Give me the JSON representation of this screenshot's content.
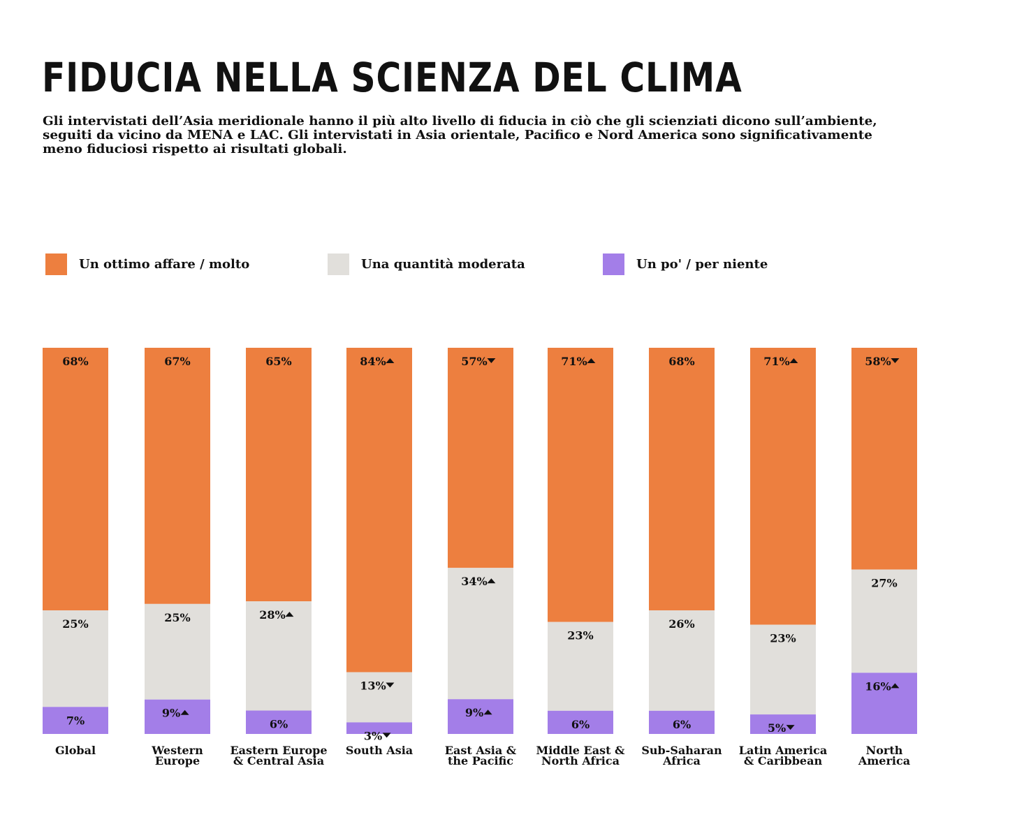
{
  "title": "FIDUCIA NELLA SCIENZA DEL CLIMA",
  "subtitle": "Gli intervistati dell’Asia meridionale hanno il più alto livello di fiducia in ciò che gli scienziati dicono sull’ambiente, seguiti da vicino da MENA e LAC. Gli intervistati in Asia orientale, Pacifico e Nord America sono significativamente meno fiduciosi rispetto ai risultati globali.",
  "colors": {
    "high": "#ED7F3F",
    "moderate": "#E1DFDB",
    "low": "#A37EE8",
    "text": "#111111"
  },
  "legend": [
    {
      "key": "high",
      "label": "Un ottimo affare / molto"
    },
    {
      "key": "moderate",
      "label": "Una quantità moderata"
    },
    {
      "key": "low",
      "label": "Un po' / per niente"
    }
  ],
  "chart_data": {
    "type": "bar",
    "stacked": true,
    "orientation": "vertical",
    "unit": "%",
    "title": "FIDUCIA NELLA SCIENZA DEL CLIMA",
    "categories": [
      [
        "Global"
      ],
      [
        "Western",
        "Europe"
      ],
      [
        "Eastern Europe",
        "& Central Asia"
      ],
      [
        "South Asia"
      ],
      [
        "East Asia &",
        "the Pacific"
      ],
      [
        "Middle East &",
        "North Africa"
      ],
      [
        "Sub-Saharan",
        "Africa"
      ],
      [
        "Latin America",
        "& Caribbean"
      ],
      [
        "North",
        "America"
      ]
    ],
    "series": [
      {
        "key": "high",
        "name": "Un ottimo affare / molto",
        "values": [
          68,
          67,
          65,
          84,
          57,
          71,
          68,
          71,
          58
        ],
        "labels": [
          "68%",
          "67%",
          "65%",
          "84%",
          "57%",
          "71%",
          "68%",
          "71%",
          "58%"
        ],
        "significance": [
          "",
          "",
          "",
          "up",
          "down",
          "up",
          "",
          "up",
          "down"
        ]
      },
      {
        "key": "moderate",
        "name": "Una quantità moderata",
        "values": [
          25,
          25,
          28,
          13,
          34,
          23,
          26,
          23,
          27
        ],
        "labels": [
          "25%",
          "25%",
          "28%",
          "13%",
          "34%",
          "23%",
          "26%",
          "23%",
          "27%"
        ],
        "significance": [
          "",
          "",
          "up",
          "down",
          "up",
          "",
          "",
          "",
          ""
        ]
      },
      {
        "key": "low",
        "name": "Un po' / per niente",
        "values": [
          7,
          9,
          6,
          3,
          9,
          6,
          6,
          5,
          16
        ],
        "labels": [
          "7%",
          "9%",
          "6%",
          "3%",
          "9%",
          "6%",
          "6%",
          "5%",
          "16%"
        ],
        "significance": [
          "",
          "up",
          "",
          "down",
          "up",
          "",
          "",
          "down",
          "up"
        ]
      }
    ],
    "stack_order": "top-to-bottom",
    "ylim": [
      0,
      100
    ],
    "grid": false,
    "legend_position": "top-left"
  }
}
